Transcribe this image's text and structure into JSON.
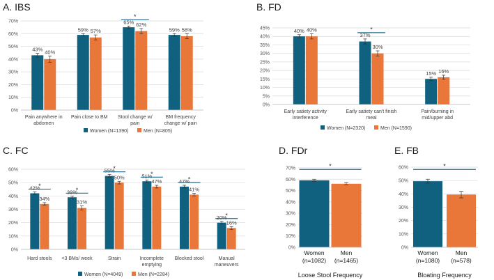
{
  "colors": {
    "women": "#10607f",
    "men": "#e9773a",
    "grid": "#d9d9d9",
    "sig": "#1d6b8a",
    "err": "#333333"
  },
  "chart_data": [
    {
      "type": "bar",
      "title": "A. IBS",
      "categories": [
        [
          "Pain anywhere in",
          "abdomen"
        ],
        [
          "Pain close to BM"
        ],
        [
          "Stool change w/",
          "pain"
        ],
        [
          "BM frequency",
          "change w/ pain"
        ]
      ],
      "series": [
        {
          "name": "Women (N=1390)",
          "values": [
            43,
            59,
            65,
            59
          ],
          "labels": [
            "43%",
            "59%",
            "65%",
            "59%"
          ],
          "err": [
            1.5,
            1,
            1,
            1
          ]
        },
        {
          "name": "Men (N=805)",
          "values": [
            40,
            57,
            62,
            58
          ],
          "labels": [
            "40%",
            "57%",
            "62%",
            "58%"
          ],
          "err": [
            2.5,
            2,
            2,
            2
          ]
        }
      ],
      "ylim": [
        0,
        70
      ],
      "yticks": [
        "0%",
        "10%",
        "20%",
        "30%",
        "40%",
        "50%",
        "60%",
        "70%"
      ],
      "significance": [
        2
      ],
      "star": "*",
      "legend_position": "bottom"
    },
    {
      "type": "bar",
      "title": "B. FD",
      "categories": [
        [
          "Early satiety activity",
          "interference"
        ],
        [
          "Early satiety can't finish",
          "meal"
        ],
        [
          "Pain/burning in",
          "mid/upper abd"
        ]
      ],
      "series": [
        {
          "name": "Women (N=2320)",
          "values": [
            40,
            37,
            15
          ],
          "labels": [
            "40%",
            "37%",
            "15%"
          ],
          "err": [
            1,
            1.5,
            1
          ]
        },
        {
          "name": "Men (N=1590)",
          "values": [
            40,
            30,
            16
          ],
          "labels": [
            "40%",
            "30%",
            "16%"
          ],
          "err": [
            1.5,
            1.5,
            1.2
          ]
        }
      ],
      "ylim": [
        0,
        45
      ],
      "yticks": [
        "0%",
        "5%",
        "10%",
        "15%",
        "20%",
        "25%",
        "30%",
        "35%",
        "40%",
        "45%"
      ],
      "significance": [
        1
      ],
      "star": "*",
      "legend_position": "bottom"
    },
    {
      "type": "bar",
      "title": "C. FC",
      "categories": [
        [
          "Hard stools"
        ],
        [
          "<3 BMs/ week"
        ],
        [
          "Strain"
        ],
        [
          "Incomplete",
          "emptying"
        ],
        [
          "Blocked stool"
        ],
        [
          "Manual",
          "maneuvers"
        ]
      ],
      "series": [
        {
          "name": "Women (N=4049)",
          "values": [
            42,
            39,
            55,
            51,
            47,
            20
          ],
          "labels": [
            "42%",
            "39%",
            "55%",
            "51%",
            "47%",
            "20%"
          ],
          "err": [
            1,
            1,
            1,
            1,
            1,
            1
          ]
        },
        {
          "name": "Men (N=2284)",
          "values": [
            34,
            31,
            50,
            47,
            41,
            16
          ],
          "labels": [
            "34%",
            "31%",
            "50%",
            "47%",
            "41%",
            "16%"
          ],
          "err": [
            1,
            1.5,
            1,
            1,
            1,
            1
          ]
        }
      ],
      "ylim": [
        0,
        60
      ],
      "yticks": [
        "0%",
        "10%",
        "20%",
        "30%",
        "40%",
        "50%",
        "60%"
      ],
      "significance": [
        0,
        1,
        2,
        3,
        4,
        5
      ],
      "star": "*",
      "legend_position": "bottom"
    },
    {
      "type": "bar",
      "title": "D. FDr",
      "categories": [
        [
          "Women",
          "(n=1082)"
        ],
        [
          "Men",
          "(n=1465)"
        ]
      ],
      "series": [
        {
          "name": "Loose Stool Frequency",
          "values": [
            59,
            56
          ],
          "err": [
            1,
            1
          ]
        }
      ],
      "xlabel": "Loose Stool Frequency",
      "ylim": [
        0,
        70
      ],
      "yticks": [
        "0%",
        "10%",
        "20%",
        "30%",
        "40%",
        "50%",
        "60%",
        "70%"
      ],
      "significance": true,
      "star": "*"
    },
    {
      "type": "bar",
      "title": "E. FB",
      "categories": [
        [
          "Women",
          "(n=1080)"
        ],
        [
          "Men",
          "(n=578)"
        ]
      ],
      "series": [
        {
          "name": "Bloating Frequency",
          "values": [
            49.5,
            39.5
          ],
          "err": [
            1.5,
            2.5
          ]
        }
      ],
      "xlabel": "Bloating Frequency",
      "ylim": [
        0,
        60
      ],
      "yticks": [
        "0%",
        "10%",
        "20%",
        "30%",
        "40%",
        "50%",
        "60%"
      ],
      "significance": true,
      "star": "*"
    }
  ]
}
